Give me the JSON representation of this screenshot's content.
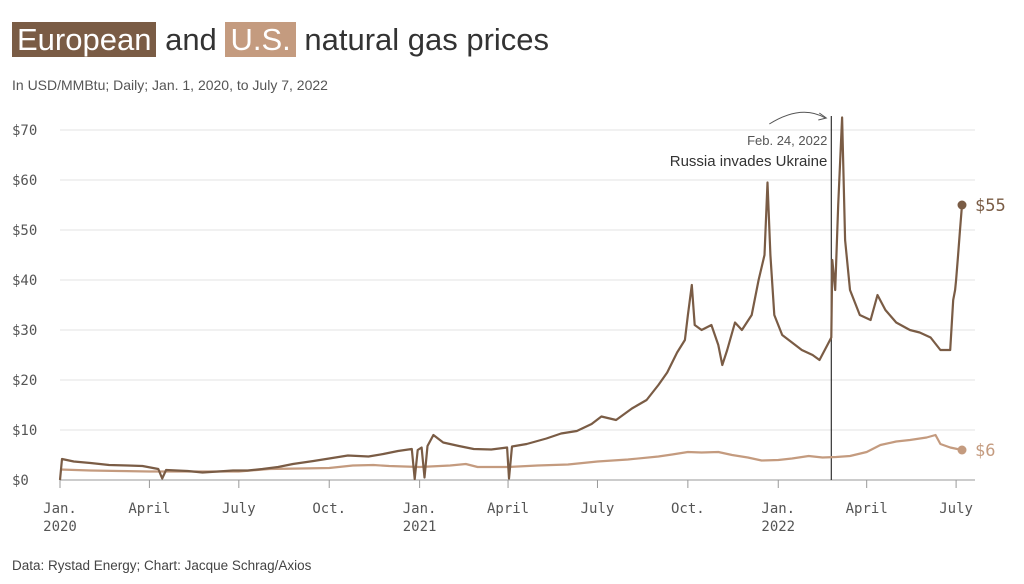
{
  "title": {
    "eu_label": "European",
    "connector": "and",
    "us_label": "U.S.",
    "rest": "natural gas prices"
  },
  "subtitle": "In USD/MMBtu; Daily; Jan. 1, 2020, to July 7, 2022",
  "source": "Data: Rystad Energy; Chart: Jacque Schrag/Axios",
  "colors": {
    "europe": "#7a5c45",
    "us": "#c49b7f",
    "grid": "#e3e3e3",
    "annotation": "#333333"
  },
  "chart_data": {
    "type": "line",
    "ylim": [
      0,
      72
    ],
    "y_ticks": [
      0,
      10,
      20,
      30,
      40,
      50,
      60,
      70
    ],
    "y_tick_labels": [
      "$0",
      "$10",
      "$20",
      "$30",
      "$40",
      "$50",
      "$60",
      "$70"
    ],
    "x_ticks": [
      {
        "date": "2020-01-01",
        "label": "Jan.",
        "year": "2020"
      },
      {
        "date": "2020-04-01",
        "label": "April",
        "year": ""
      },
      {
        "date": "2020-07-01",
        "label": "July",
        "year": ""
      },
      {
        "date": "2020-10-01",
        "label": "Oct.",
        "year": ""
      },
      {
        "date": "2021-01-01",
        "label": "Jan.",
        "year": "2021"
      },
      {
        "date": "2021-04-01",
        "label": "April",
        "year": ""
      },
      {
        "date": "2021-07-01",
        "label": "July",
        "year": ""
      },
      {
        "date": "2021-10-01",
        "label": "Oct.",
        "year": ""
      },
      {
        "date": "2022-01-01",
        "label": "Jan.",
        "year": "2022"
      },
      {
        "date": "2022-04-01",
        "label": "April",
        "year": ""
      },
      {
        "date": "2022-07-01",
        "label": "July",
        "year": ""
      }
    ],
    "x_range": [
      "2020-01-01",
      "2022-07-07"
    ],
    "annotation": {
      "date": "2022-02-24",
      "date_label": "Feb. 24, 2022",
      "text": "Russia invades Ukraine"
    },
    "series": [
      {
        "key": "europe",
        "end_label": "$55",
        "points": [
          [
            "2020-01-01",
            0
          ],
          [
            "2020-01-03",
            4.2
          ],
          [
            "2020-01-15",
            3.7
          ],
          [
            "2020-02-01",
            3.4
          ],
          [
            "2020-02-20",
            3.0
          ],
          [
            "2020-03-10",
            2.9
          ],
          [
            "2020-03-25",
            2.8
          ],
          [
            "2020-04-10",
            2.2
          ],
          [
            "2020-04-14",
            0.3
          ],
          [
            "2020-04-18",
            2.0
          ],
          [
            "2020-05-10",
            1.8
          ],
          [
            "2020-05-25",
            1.5
          ],
          [
            "2020-06-10",
            1.7
          ],
          [
            "2020-06-25",
            1.9
          ],
          [
            "2020-07-10",
            1.9
          ],
          [
            "2020-07-25",
            2.2
          ],
          [
            "2020-08-10",
            2.6
          ],
          [
            "2020-08-25",
            3.2
          ],
          [
            "2020-09-15",
            3.8
          ],
          [
            "2020-10-01",
            4.3
          ],
          [
            "2020-10-20",
            4.9
          ],
          [
            "2020-11-10",
            4.7
          ],
          [
            "2020-11-25",
            5.2
          ],
          [
            "2020-12-10",
            5.8
          ],
          [
            "2020-12-24",
            6.2
          ],
          [
            "2020-12-27",
            0.2
          ],
          [
            "2020-12-30",
            6.0
          ],
          [
            "2021-01-03",
            6.5
          ],
          [
            "2021-01-06",
            0.5
          ],
          [
            "2021-01-09",
            6.8
          ],
          [
            "2021-01-15",
            9.0
          ],
          [
            "2021-01-25",
            7.5
          ],
          [
            "2021-02-10",
            6.8
          ],
          [
            "2021-02-25",
            6.2
          ],
          [
            "2021-03-15",
            6.1
          ],
          [
            "2021-03-31",
            6.5
          ],
          [
            "2021-04-02",
            0.3
          ],
          [
            "2021-04-05",
            6.7
          ],
          [
            "2021-04-20",
            7.2
          ],
          [
            "2021-05-10",
            8.3
          ],
          [
            "2021-05-25",
            9.3
          ],
          [
            "2021-06-10",
            9.8
          ],
          [
            "2021-06-25",
            11.2
          ],
          [
            "2021-07-05",
            12.7
          ],
          [
            "2021-07-20",
            12.0
          ],
          [
            "2021-08-05",
            14.3
          ],
          [
            "2021-08-20",
            16.0
          ],
          [
            "2021-09-01",
            19.0
          ],
          [
            "2021-09-10",
            21.5
          ],
          [
            "2021-09-20",
            25.5
          ],
          [
            "2021-09-28",
            28.0
          ],
          [
            "2021-10-01",
            33.0
          ],
          [
            "2021-10-05",
            39.0
          ],
          [
            "2021-10-08",
            31.0
          ],
          [
            "2021-10-15",
            30.0
          ],
          [
            "2021-10-25",
            31.0
          ],
          [
            "2021-11-01",
            27.0
          ],
          [
            "2021-11-05",
            23.0
          ],
          [
            "2021-11-10",
            26.0
          ],
          [
            "2021-11-18",
            31.5
          ],
          [
            "2021-11-25",
            30.0
          ],
          [
            "2021-12-05",
            33.0
          ],
          [
            "2021-12-12",
            40.0
          ],
          [
            "2021-12-18",
            45.0
          ],
          [
            "2021-12-21",
            59.5
          ],
          [
            "2021-12-24",
            45.0
          ],
          [
            "2021-12-28",
            33.0
          ],
          [
            "2022-01-05",
            29.0
          ],
          [
            "2022-01-15",
            27.5
          ],
          [
            "2022-01-25",
            26.0
          ],
          [
            "2022-02-05",
            25.0
          ],
          [
            "2022-02-12",
            24.0
          ],
          [
            "2022-02-20",
            27.0
          ],
          [
            "2022-02-24",
            28.5
          ],
          [
            "2022-02-25",
            44.0
          ],
          [
            "2022-02-28",
            38.0
          ],
          [
            "2022-03-03",
            55.0
          ],
          [
            "2022-03-07",
            72.5
          ],
          [
            "2022-03-10",
            48.0
          ],
          [
            "2022-03-15",
            38.0
          ],
          [
            "2022-03-25",
            33.0
          ],
          [
            "2022-04-05",
            32.0
          ],
          [
            "2022-04-12",
            37.0
          ],
          [
            "2022-04-20",
            34.0
          ],
          [
            "2022-05-01",
            31.5
          ],
          [
            "2022-05-15",
            30.0
          ],
          [
            "2022-05-25",
            29.5
          ],
          [
            "2022-06-05",
            28.5
          ],
          [
            "2022-06-15",
            26.0
          ],
          [
            "2022-06-25",
            26.0
          ],
          [
            "2022-06-28",
            36.0
          ],
          [
            "2022-06-30",
            38.0
          ],
          [
            "2022-07-01",
            40.0
          ],
          [
            "2022-07-03",
            45.0
          ],
          [
            "2022-07-05",
            50.0
          ],
          [
            "2022-07-07",
            55.0
          ]
        ]
      },
      {
        "key": "us",
        "end_label": "$6",
        "points": [
          [
            "2020-01-01",
            2.1
          ],
          [
            "2020-02-01",
            1.9
          ],
          [
            "2020-03-01",
            1.8
          ],
          [
            "2020-04-01",
            1.7
          ],
          [
            "2020-05-01",
            1.7
          ],
          [
            "2020-06-01",
            1.7
          ],
          [
            "2020-07-01",
            1.7
          ],
          [
            "2020-08-01",
            2.2
          ],
          [
            "2020-09-01",
            2.3
          ],
          [
            "2020-10-01",
            2.4
          ],
          [
            "2020-10-25",
            2.9
          ],
          [
            "2020-11-15",
            3.0
          ],
          [
            "2020-12-01",
            2.8
          ],
          [
            "2021-01-01",
            2.6
          ],
          [
            "2021-02-01",
            2.9
          ],
          [
            "2021-02-17",
            3.2
          ],
          [
            "2021-03-01",
            2.6
          ],
          [
            "2021-04-01",
            2.6
          ],
          [
            "2021-05-01",
            2.9
          ],
          [
            "2021-06-01",
            3.1
          ],
          [
            "2021-07-01",
            3.7
          ],
          [
            "2021-08-01",
            4.1
          ],
          [
            "2021-09-01",
            4.7
          ],
          [
            "2021-09-15",
            5.1
          ],
          [
            "2021-10-01",
            5.6
          ],
          [
            "2021-10-15",
            5.5
          ],
          [
            "2021-11-01",
            5.6
          ],
          [
            "2021-11-15",
            5.0
          ],
          [
            "2021-12-01",
            4.5
          ],
          [
            "2021-12-15",
            3.9
          ],
          [
            "2022-01-01",
            4.0
          ],
          [
            "2022-01-15",
            4.3
          ],
          [
            "2022-02-01",
            4.8
          ],
          [
            "2022-02-15",
            4.5
          ],
          [
            "2022-03-01",
            4.6
          ],
          [
            "2022-03-15",
            4.8
          ],
          [
            "2022-04-01",
            5.6
          ],
          [
            "2022-04-15",
            7.0
          ],
          [
            "2022-05-01",
            7.7
          ],
          [
            "2022-05-15",
            8.0
          ],
          [
            "2022-06-01",
            8.5
          ],
          [
            "2022-06-10",
            9.0
          ],
          [
            "2022-06-15",
            7.2
          ],
          [
            "2022-06-25",
            6.5
          ],
          [
            "2022-07-07",
            6.0
          ]
        ]
      }
    ]
  }
}
